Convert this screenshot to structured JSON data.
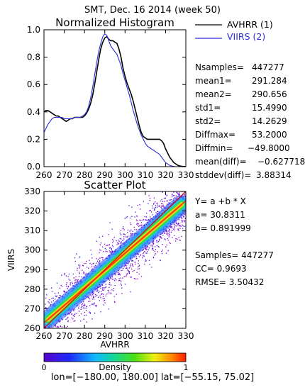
{
  "header": {
    "title": "SMT,  Dec. 16 2014  (week 50)"
  },
  "colors": {
    "series1": "#000000",
    "series2": "#2b2bd6",
    "fit_line": "#ff2a00",
    "diag_line": "#d40000"
  },
  "chart_data": [
    {
      "type": "line",
      "title": "Normalized Histogram",
      "xlim": [
        260,
        330
      ],
      "ylim": [
        0.0,
        1.0
      ],
      "xticks": [
        260,
        270,
        280,
        290,
        300,
        310,
        320,
        330
      ],
      "yticks": [
        0.0,
        0.2,
        0.4,
        0.6,
        0.8,
        1.0
      ],
      "ytick_labels": [
        "0.0",
        "0.2",
        "0.4",
        "0.6",
        "0.8",
        "1.0"
      ],
      "series": [
        {
          "name": "AVHRR (1)",
          "color": "#000000",
          "x": [
            260,
            261,
            262,
            263,
            264,
            265,
            266,
            267,
            268,
            269,
            270,
            271,
            272,
            273,
            274,
            275,
            276,
            277,
            278,
            279,
            280,
            281,
            282,
            283,
            284,
            285,
            286,
            287,
            288,
            289,
            290,
            291,
            292,
            293,
            294,
            295,
            296,
            297,
            298,
            299,
            300,
            301,
            302,
            303,
            304,
            305,
            306,
            307,
            308,
            309,
            310,
            311,
            312,
            313,
            314,
            315,
            316,
            317,
            318,
            319,
            320,
            321,
            322,
            323,
            324,
            325,
            326,
            327,
            328,
            329,
            330
          ],
          "y": [
            0.4,
            0.41,
            0.41,
            0.4,
            0.39,
            0.38,
            0.37,
            0.37,
            0.36,
            0.35,
            0.34,
            0.33,
            0.34,
            0.35,
            0.35,
            0.36,
            0.36,
            0.36,
            0.36,
            0.36,
            0.37,
            0.39,
            0.42,
            0.46,
            0.52,
            0.6,
            0.69,
            0.78,
            0.86,
            0.91,
            0.94,
            0.95,
            0.93,
            0.92,
            0.92,
            0.91,
            0.9,
            0.86,
            0.8,
            0.72,
            0.66,
            0.61,
            0.57,
            0.53,
            0.48,
            0.42,
            0.36,
            0.3,
            0.25,
            0.22,
            0.21,
            0.2,
            0.2,
            0.2,
            0.2,
            0.2,
            0.2,
            0.2,
            0.19,
            0.17,
            0.13,
            0.1,
            0.07,
            0.05,
            0.03,
            0.02,
            0.01,
            0.005,
            0.002,
            0.001,
            0.0
          ]
        },
        {
          "name": "VIIRS (2)",
          "color": "#2b2bd6",
          "x": [
            260,
            261,
            262,
            263,
            264,
            265,
            266,
            267,
            268,
            269,
            270,
            271,
            272,
            273,
            274,
            275,
            276,
            277,
            278,
            279,
            280,
            281,
            282,
            283,
            284,
            285,
            286,
            287,
            288,
            289,
            290,
            291,
            292,
            293,
            294,
            295,
            296,
            297,
            298,
            299,
            300,
            301,
            302,
            303,
            304,
            305,
            306,
            307,
            308,
            309,
            310,
            311,
            312,
            313,
            314,
            315,
            316,
            317,
            318,
            319,
            320,
            321,
            322,
            323,
            324,
            325,
            326,
            327,
            328,
            329,
            330
          ],
          "y": [
            0.25,
            0.28,
            0.31,
            0.33,
            0.35,
            0.36,
            0.36,
            0.36,
            0.36,
            0.36,
            0.35,
            0.35,
            0.35,
            0.35,
            0.35,
            0.36,
            0.36,
            0.36,
            0.36,
            0.37,
            0.38,
            0.4,
            0.44,
            0.5,
            0.58,
            0.67,
            0.76,
            0.84,
            0.9,
            0.95,
            0.97,
            0.96,
            0.92,
            0.88,
            0.86,
            0.84,
            0.82,
            0.78,
            0.74,
            0.68,
            0.63,
            0.58,
            0.53,
            0.47,
            0.41,
            0.36,
            0.31,
            0.27,
            0.23,
            0.2,
            0.17,
            0.15,
            0.14,
            0.13,
            0.12,
            0.11,
            0.1,
            0.09,
            0.07,
            0.05,
            0.03,
            0.02,
            0.01,
            0.005,
            0.002,
            0.0,
            0.0,
            0.0,
            0.0,
            0.0,
            0.0
          ]
        }
      ]
    },
    {
      "type": "heatmap",
      "title": "Scatter Plot",
      "xlabel": "AVHRR",
      "ylabel": "VIIRS",
      "xlim": [
        260,
        330
      ],
      "ylim": [
        260,
        330
      ],
      "xticks": [
        260,
        270,
        280,
        290,
        300,
        310,
        320,
        330
      ],
      "yticks": [
        260,
        270,
        280,
        290,
        300,
        310,
        320,
        330
      ],
      "fit": {
        "a": 30.8311,
        "b": 0.891999
      },
      "one_to_one_line": true,
      "colorbar": {
        "label": "Density",
        "min": "0",
        "max": "1"
      }
    }
  ],
  "stats": [
    {
      "label": "Nsamples=",
      "value": "447277"
    },
    {
      "label": "mean1=",
      "value": "291.284"
    },
    {
      "label": "mean2=",
      "value": "290.656"
    },
    {
      "label": "std1=",
      "value": "15.4990"
    },
    {
      "label": "std2=",
      "value": "14.2629"
    },
    {
      "label": "Diffmax=",
      "value": "53.2000"
    },
    {
      "label": "Diffmin=",
      "value": "−49.8000"
    },
    {
      "label": "mean(diff)=",
      "value": "−0.627718"
    },
    {
      "label": "stddev(diff)=",
      "value": "3.88314"
    }
  ],
  "fit_text": {
    "equation": "Y= a +b * X",
    "a": "a= 30.8311",
    "b": "b= 0.891999",
    "samples": "Samples= 447277",
    "cc": "CC=  0.9693",
    "rmse": "RMSE= 3.50432"
  },
  "footer": {
    "range": "lon=[−180.00, 180.00] lat=[−55.15, 75.02]"
  }
}
